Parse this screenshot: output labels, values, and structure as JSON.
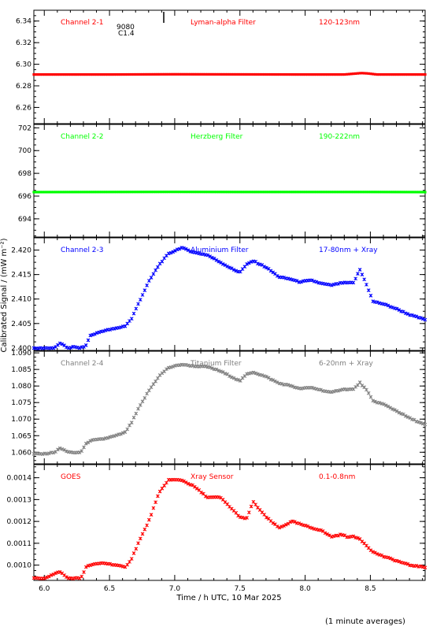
{
  "xlabel": "Time / h UTC, 10 Mar 2025",
  "ylabel": "Calibrated Signal / (mW m⁻²)",
  "footnote": "(1 minute averages)",
  "top_annotation": {
    "line1": "9080",
    "line2": "C1.4"
  },
  "colors": {
    "red": "#ff0000",
    "green": "#00ff00",
    "blue": "#0000ff",
    "gray": "#808080"
  },
  "chart_data": [
    {
      "type": "scatter",
      "panel": "channel-2-1",
      "labels": [
        "Channel 2-1",
        "Lyman-alpha Filter",
        "120-123nm"
      ],
      "color": "#ff0000",
      "xlim": [
        5.92,
        8.92
      ],
      "ylim": [
        6.245,
        6.35
      ],
      "xticks": [
        "6.0",
        "6.5",
        "7.0",
        "7.5",
        "8.0",
        "8.5"
      ],
      "yticks": [
        "6.26",
        "6.28",
        "6.30",
        "6.32",
        "6.34"
      ],
      "x": [
        5.92,
        6.5,
        7.0,
        7.5,
        8.0,
        8.3,
        8.43,
        8.48,
        8.55,
        8.92
      ],
      "y": [
        6.2905,
        6.2905,
        6.2907,
        6.2906,
        6.2905,
        6.2905,
        6.2918,
        6.2915,
        6.2905,
        6.2905
      ]
    },
    {
      "type": "scatter",
      "panel": "channel-2-2",
      "labels": [
        "Channel 2-2",
        "Herzberg Filter",
        "190-222nm"
      ],
      "color": "#00ff00",
      "xlim": [
        5.92,
        8.92
      ],
      "ylim": [
        692.4,
        702.3
      ],
      "xticks": [
        "6.0",
        "6.5",
        "7.0",
        "7.5",
        "8.0",
        "8.5"
      ],
      "yticks": [
        "694",
        "696",
        "698",
        "700",
        "702"
      ],
      "x": [
        5.92,
        6.5,
        7.0,
        7.5,
        8.0,
        8.5,
        8.92
      ],
      "y": [
        696.35,
        696.36,
        696.37,
        696.36,
        696.36,
        696.36,
        696.35
      ]
    },
    {
      "type": "scatter",
      "panel": "channel-2-3",
      "labels": [
        "Channel 2-3",
        "Aluminium Filter",
        "17-80nm + Xray"
      ],
      "color": "#0000ff",
      "xlim": [
        5.92,
        8.92
      ],
      "ylim": [
        2.3995,
        2.4225
      ],
      "xticks": [
        "6.0",
        "6.5",
        "7.0",
        "7.5",
        "8.0",
        "8.5"
      ],
      "yticks": [
        "2.400",
        "2.405",
        "2.410",
        "2.415",
        "2.420"
      ],
      "x": [
        5.92,
        6.0,
        6.08,
        6.12,
        6.18,
        6.22,
        6.28,
        6.32,
        6.35,
        6.45,
        6.55,
        6.62,
        6.67,
        6.72,
        6.8,
        6.88,
        6.95,
        7.05,
        7.15,
        7.25,
        7.35,
        7.45,
        7.5,
        7.55,
        7.6,
        7.7,
        7.8,
        7.9,
        7.95,
        8.05,
        8.12,
        8.2,
        8.28,
        8.32,
        8.37,
        8.42,
        8.47,
        8.52,
        8.6,
        8.7,
        8.8,
        8.92
      ],
      "y": [
        2.3999,
        2.4,
        2.4,
        2.401,
        2.4,
        2.4002,
        2.4,
        2.4005,
        2.4025,
        2.4035,
        2.404,
        2.4045,
        2.406,
        2.409,
        2.4135,
        2.417,
        2.4192,
        2.4205,
        2.4195,
        2.419,
        2.4175,
        2.416,
        2.4155,
        2.417,
        2.4178,
        2.4165,
        2.4145,
        2.414,
        2.4135,
        2.4138,
        2.4132,
        2.4128,
        2.4133,
        2.4133,
        2.4133,
        2.416,
        2.413,
        2.4095,
        2.409,
        2.408,
        2.4068,
        2.4058
      ]
    },
    {
      "type": "scatter",
      "panel": "channel-2-4",
      "labels": [
        "Channel 2-4",
        "Titanium Filter",
        "6-20nm + Xray"
      ],
      "color": "#808080",
      "xlim": [
        5.92,
        8.92
      ],
      "ylim": [
        1.0565,
        1.0905
      ],
      "xticks": [
        "6.0",
        "6.5",
        "7.0",
        "7.5",
        "8.0",
        "8.5"
      ],
      "yticks": [
        "1.060",
        "1.065",
        "1.070",
        "1.075",
        "1.080",
        "1.085",
        "1.090"
      ],
      "x": [
        5.92,
        6.0,
        6.08,
        6.12,
        6.18,
        6.22,
        6.28,
        6.32,
        6.35,
        6.45,
        6.55,
        6.62,
        6.67,
        6.72,
        6.8,
        6.88,
        6.95,
        7.05,
        7.15,
        7.25,
        7.35,
        7.45,
        7.5,
        7.55,
        7.6,
        7.7,
        7.8,
        7.9,
        7.95,
        8.05,
        8.12,
        8.2,
        8.28,
        8.32,
        8.37,
        8.42,
        8.47,
        8.52,
        8.6,
        8.7,
        8.8,
        8.92
      ],
      "y": [
        1.0595,
        1.0595,
        1.06,
        1.0612,
        1.0602,
        1.0598,
        1.06,
        1.0625,
        1.0635,
        1.064,
        1.065,
        1.066,
        1.069,
        1.073,
        1.0785,
        1.083,
        1.0855,
        1.0865,
        1.086,
        1.0858,
        1.0845,
        1.0825,
        1.0815,
        1.0835,
        1.0842,
        1.0828,
        1.0808,
        1.08,
        1.0792,
        1.0795,
        1.0788,
        1.078,
        1.079,
        1.079,
        1.079,
        1.081,
        1.0788,
        1.0755,
        1.0745,
        1.0725,
        1.0703,
        1.0683
      ]
    },
    {
      "type": "scatter",
      "panel": "goes",
      "labels": [
        "GOES",
        "Xray Sensor",
        "0.1-0.8nm"
      ],
      "color": "#ff0000",
      "xlim": [
        5.92,
        8.92
      ],
      "ylim": [
        0.00093,
        0.00146
      ],
      "xticks": [
        "6.0",
        "6.5",
        "7.0",
        "7.5",
        "8.0",
        "8.5"
      ],
      "yticks": [
        "0.0010",
        "0.0011",
        "0.0012",
        "0.0013",
        "0.0014"
      ],
      "x": [
        5.92,
        6.0,
        6.08,
        6.12,
        6.18,
        6.22,
        6.28,
        6.32,
        6.35,
        6.45,
        6.55,
        6.62,
        6.67,
        6.72,
        6.8,
        6.88,
        6.95,
        7.05,
        7.15,
        7.25,
        7.35,
        7.45,
        7.5,
        7.55,
        7.6,
        7.7,
        7.8,
        7.9,
        7.95,
        8.05,
        8.12,
        8.2,
        8.28,
        8.32,
        8.37,
        8.42,
        8.47,
        8.52,
        8.6,
        8.7,
        8.8,
        8.92
      ],
      "y": [
        0.00094,
        0.00094,
        0.00096,
        0.00097,
        0.00094,
        0.00094,
        0.00094,
        0.00099,
        0.001,
        0.00101,
        0.001,
        0.00099,
        0.00103,
        0.0011,
        0.0012,
        0.00133,
        0.00139,
        0.00139,
        0.00136,
        0.00131,
        0.00131,
        0.00125,
        0.00122,
        0.00121,
        0.00129,
        0.00122,
        0.00117,
        0.0012,
        0.00119,
        0.00117,
        0.00116,
        0.00113,
        0.00114,
        0.00113,
        0.00113,
        0.00112,
        0.00109,
        0.00106,
        0.00104,
        0.00102,
        0.001,
        0.00099
      ]
    }
  ]
}
